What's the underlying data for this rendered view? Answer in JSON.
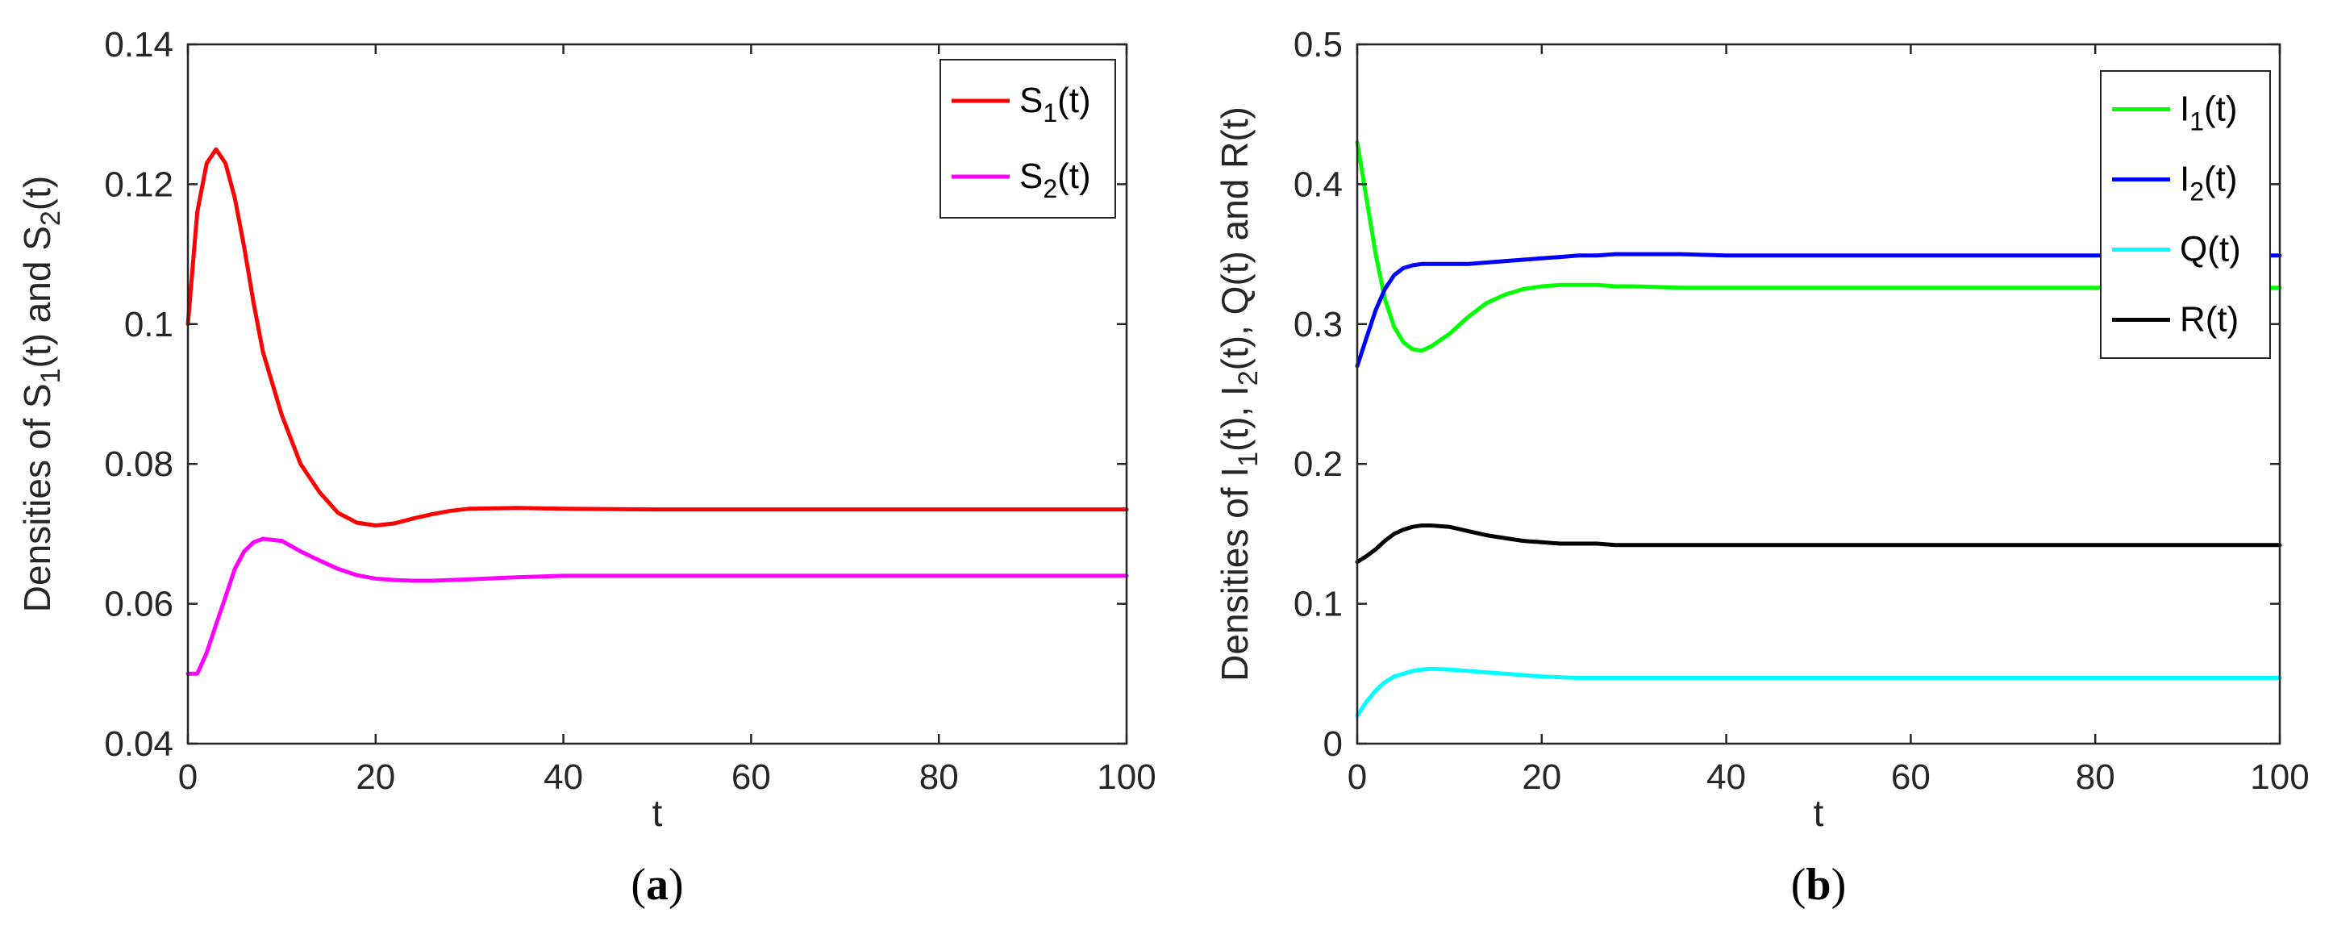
{
  "chart_data": [
    {
      "id": "a",
      "type": "line",
      "caption_letter": "a",
      "xlabel": "t",
      "ylabel_parts": [
        [
          "Densities of S",
          ""
        ],
        [
          "1",
          "sub"
        ],
        [
          "(t) and S",
          ""
        ],
        [
          "2",
          "sub"
        ],
        [
          "(t)",
          ""
        ]
      ],
      "xlim": [
        0,
        100
      ],
      "ylim": [
        0.04,
        0.14
      ],
      "xticks": [
        0,
        20,
        40,
        60,
        80,
        100
      ],
      "xtick_labels": [
        "0",
        "20",
        "40",
        "60",
        "80",
        "100"
      ],
      "yticks": [
        0.04,
        0.06,
        0.08,
        0.1,
        0.12,
        0.14
      ],
      "ytick_labels": [
        "0.04",
        "0.06",
        "0.08",
        "0.1",
        "0.12",
        "0.14"
      ],
      "legend_position": "top-right",
      "series": [
        {
          "name": "S1(t)",
          "label_main": "S",
          "label_sub": "1",
          "label_tail": "(t)",
          "color": "#ff0000",
          "x": [
            0,
            1,
            2,
            3,
            4,
            5,
            6,
            7,
            8,
            10,
            12,
            14,
            16,
            18,
            20,
            22,
            24,
            26,
            28,
            30,
            35,
            40,
            50,
            60,
            80,
            100
          ],
          "y": [
            0.1,
            0.116,
            0.123,
            0.125,
            0.123,
            0.118,
            0.111,
            0.103,
            0.096,
            0.087,
            0.08,
            0.076,
            0.073,
            0.0716,
            0.0712,
            0.0715,
            0.0722,
            0.0728,
            0.0733,
            0.0736,
            0.0737,
            0.0736,
            0.0735,
            0.0735,
            0.0735,
            0.0735
          ]
        },
        {
          "name": "S2(t)",
          "label_main": "S",
          "label_sub": "2",
          "label_tail": "(t)",
          "color": "#ff00ff",
          "x": [
            0,
            1,
            2,
            3,
            4,
            5,
            6,
            7,
            8,
            10,
            12,
            14,
            16,
            18,
            20,
            22,
            24,
            26,
            28,
            30,
            35,
            40,
            50,
            60,
            80,
            100
          ],
          "y": [
            0.05,
            0.05,
            0.053,
            0.057,
            0.061,
            0.065,
            0.0675,
            0.0688,
            0.0693,
            0.069,
            0.0675,
            0.0662,
            0.065,
            0.0641,
            0.0636,
            0.0634,
            0.0633,
            0.0633,
            0.0634,
            0.0635,
            0.0638,
            0.064,
            0.064,
            0.064,
            0.064,
            0.064
          ]
        }
      ]
    },
    {
      "id": "b",
      "type": "line",
      "caption_letter": "b",
      "xlabel": "t",
      "ylabel_parts": [
        [
          "Densities of I",
          ""
        ],
        [
          "1",
          "sub"
        ],
        [
          "(t), I",
          ""
        ],
        [
          "2",
          "sub"
        ],
        [
          "(t), Q(t) and R(t)",
          ""
        ]
      ],
      "xlim": [
        0,
        100
      ],
      "ylim": [
        0,
        0.5
      ],
      "xticks": [
        0,
        20,
        40,
        60,
        80,
        100
      ],
      "xtick_labels": [
        "0",
        "20",
        "40",
        "60",
        "80",
        "100"
      ],
      "yticks": [
        0,
        0.1,
        0.2,
        0.3,
        0.4,
        0.5
      ],
      "ytick_labels": [
        "0",
        "0.1",
        "0.2",
        "0.3",
        "0.4",
        "0.5"
      ],
      "legend_position": "top-right",
      "series": [
        {
          "name": "I1(t)",
          "label_main": "I",
          "label_sub": "1",
          "label_tail": "(t)",
          "color": "#00ff00",
          "x": [
            0,
            1,
            2,
            3,
            4,
            5,
            6,
            7,
            8,
            10,
            12,
            14,
            16,
            18,
            20,
            22,
            24,
            26,
            28,
            30,
            35,
            40,
            50,
            60,
            80,
            100
          ],
          "y": [
            0.43,
            0.39,
            0.35,
            0.318,
            0.298,
            0.287,
            0.282,
            0.281,
            0.284,
            0.293,
            0.305,
            0.315,
            0.321,
            0.325,
            0.327,
            0.328,
            0.328,
            0.328,
            0.327,
            0.327,
            0.326,
            0.326,
            0.326,
            0.326,
            0.326,
            0.326
          ]
        },
        {
          "name": "I2(t)",
          "label_main": "I",
          "label_sub": "2",
          "label_tail": "(t)",
          "color": "#0000ff",
          "x": [
            0,
            1,
            2,
            3,
            4,
            5,
            6,
            7,
            8,
            10,
            12,
            14,
            16,
            18,
            20,
            22,
            24,
            26,
            28,
            30,
            35,
            40,
            50,
            60,
            80,
            100
          ],
          "y": [
            0.27,
            0.29,
            0.31,
            0.325,
            0.335,
            0.34,
            0.342,
            0.343,
            0.343,
            0.343,
            0.343,
            0.344,
            0.345,
            0.346,
            0.347,
            0.348,
            0.349,
            0.349,
            0.35,
            0.35,
            0.35,
            0.349,
            0.349,
            0.349,
            0.349,
            0.349
          ]
        },
        {
          "name": "Q(t)",
          "label_main": "Q(t)",
          "label_sub": "",
          "label_tail": "",
          "color": "#00ffff",
          "x": [
            0,
            1,
            2,
            3,
            4,
            5,
            6,
            7,
            8,
            10,
            12,
            14,
            16,
            18,
            20,
            22,
            24,
            26,
            28,
            30,
            35,
            40,
            50,
            60,
            80,
            100
          ],
          "y": [
            0.02,
            0.03,
            0.038,
            0.044,
            0.048,
            0.05,
            0.052,
            0.053,
            0.0535,
            0.053,
            0.052,
            0.051,
            0.05,
            0.049,
            0.048,
            0.0475,
            0.047,
            0.047,
            0.047,
            0.047,
            0.047,
            0.047,
            0.047,
            0.047,
            0.047,
            0.047
          ]
        },
        {
          "name": "R(t)",
          "label_main": "R(t)",
          "label_sub": "",
          "label_tail": "",
          "color": "#000000",
          "x": [
            0,
            1,
            2,
            3,
            4,
            5,
            6,
            7,
            8,
            10,
            12,
            14,
            16,
            18,
            20,
            22,
            24,
            26,
            28,
            30,
            35,
            40,
            50,
            60,
            80,
            100
          ],
          "y": [
            0.13,
            0.134,
            0.139,
            0.145,
            0.15,
            0.153,
            0.155,
            0.156,
            0.156,
            0.155,
            0.152,
            0.149,
            0.147,
            0.145,
            0.144,
            0.143,
            0.143,
            0.143,
            0.142,
            0.142,
            0.142,
            0.142,
            0.142,
            0.142,
            0.142,
            0.142
          ]
        }
      ]
    }
  ]
}
